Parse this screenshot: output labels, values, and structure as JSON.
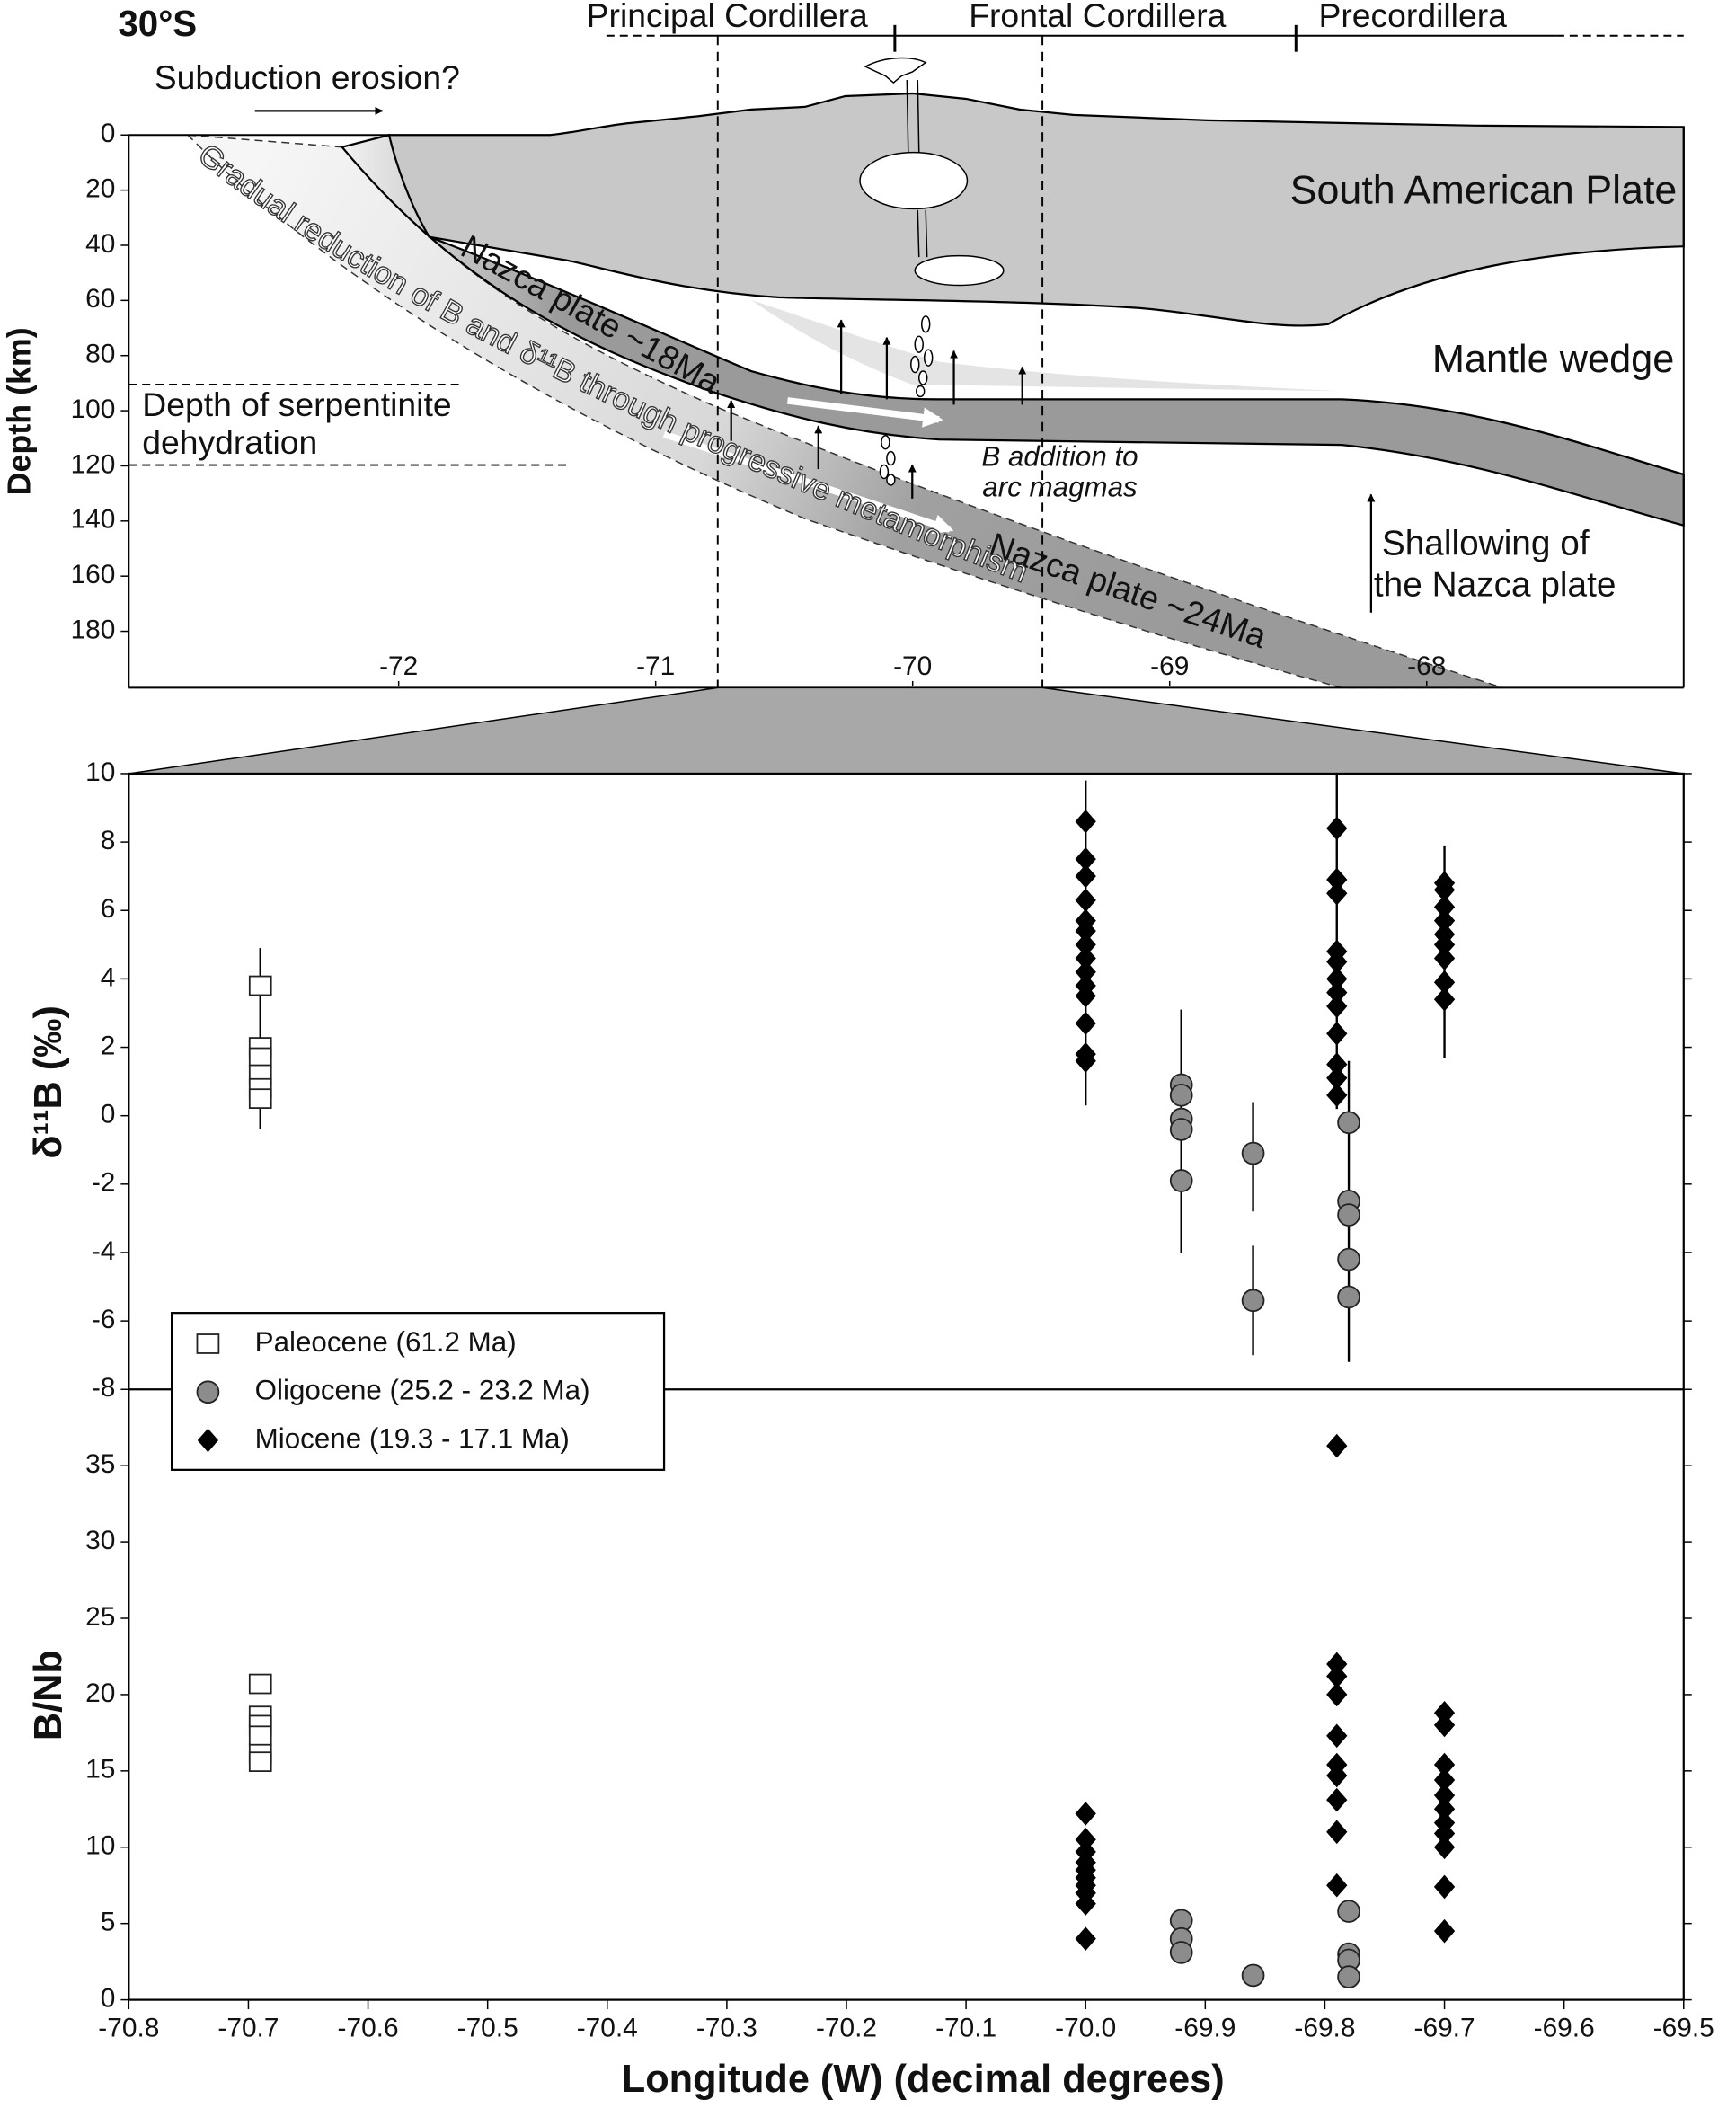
{
  "chart_data": [
    {
      "type": "section",
      "title": "30°S",
      "ylabel": "Depth (km)",
      "ylim": [
        0,
        200
      ],
      "yticks": [
        0,
        20,
        40,
        60,
        80,
        100,
        120,
        140,
        160,
        180
      ],
      "xlim": [
        -73.05,
        -67.0
      ],
      "xticks": [
        -72,
        -71,
        -70,
        -69,
        -68
      ],
      "regions": [
        "Principal Cordillera",
        "Frontal Cordillera",
        "Precordillera"
      ],
      "annotations": {
        "erosion": "Subduction erosion?",
        "plate": "South American Plate",
        "wedge": "Mantle wedge",
        "slab18": "Nazca plate ~18Ma",
        "slab24": "Nazca plate ~24Ma",
        "reduction": "Gradual reduction of B and δ¹¹B through progressive metamorphism",
        "serpentinite": [
          "Depth of serpentinite",
          "dehydration"
        ],
        "addition": [
          "B addition to",
          "arc magmas"
        ],
        "shallowing": [
          "Shallowing of",
          "the Nazca plate"
        ]
      }
    },
    {
      "type": "scatter",
      "ylabel": "δ¹¹B (‰)",
      "xlim": [
        -70.8,
        -69.5
      ],
      "ylim": [
        -8,
        10
      ],
      "yticks": [
        -8,
        -6,
        -4,
        -2,
        0,
        2,
        4,
        6,
        8,
        10
      ],
      "legend": "lower left",
      "series": [
        {
          "name": "Paleocene (61.2 Ma)",
          "marker": "square",
          "color": "#ffffff",
          "x": [
            -70.69,
            -70.69,
            -70.69,
            -70.69,
            -70.69,
            -70.69
          ],
          "values": [
            3.8,
            2.0,
            1.7,
            1.2,
            0.8,
            0.5
          ],
          "error_bars": [
            {
              "x": -70.69,
              "low": -0.4,
              "high": 4.9
            }
          ]
        },
        {
          "name": "Oligocene (25.2 - 23.2 Ma)",
          "marker": "circle",
          "color": "#8c8c8c",
          "x": [
            -69.92,
            -69.92,
            -69.92,
            -69.92,
            -69.92,
            -69.86,
            -69.86,
            -69.78,
            -69.78,
            -69.78,
            -69.78,
            -69.78
          ],
          "values": [
            0.9,
            0.6,
            -0.1,
            -0.4,
            -1.9,
            -1.1,
            -5.4,
            -0.2,
            -2.5,
            -2.9,
            -4.2,
            -5.3
          ],
          "error_bars": [
            {
              "x": -69.92,
              "low": -4.0,
              "high": 3.1
            },
            {
              "x": -69.86,
              "low": -2.8,
              "high": 0.4
            },
            {
              "x": -69.86,
              "low": -7.0,
              "high": -3.8
            },
            {
              "x": -69.78,
              "low": -7.2,
              "high": 1.6
            }
          ]
        },
        {
          "name": "Miocene (19.3 - 17.1 Ma)",
          "marker": "diamond",
          "color": "#000000",
          "x": [
            -70.0,
            -70.0,
            -70.0,
            -70.0,
            -70.0,
            -70.0,
            -70.0,
            -70.0,
            -70.0,
            -70.0,
            -70.0,
            -70.0,
            -70.0,
            -70.0,
            -69.79,
            -69.79,
            -69.79,
            -69.79,
            -69.79,
            -69.79,
            -69.79,
            -69.79,
            -69.79,
            -69.79,
            -69.79,
            -69.79,
            -69.7,
            -69.7,
            -69.7,
            -69.7,
            -69.7,
            -69.7,
            -69.7,
            -69.7,
            -69.7
          ],
          "values": [
            8.6,
            7.5,
            7.0,
            6.3,
            5.7,
            5.4,
            5.0,
            4.6,
            4.2,
            3.8,
            3.5,
            2.7,
            1.8,
            1.6,
            8.4,
            6.9,
            6.5,
            4.8,
            4.5,
            4.0,
            3.6,
            3.2,
            2.4,
            1.5,
            1.1,
            0.6,
            6.8,
            6.6,
            6.1,
            5.7,
            5.3,
            5.0,
            4.6,
            3.9,
            3.4
          ],
          "error_bars": [
            {
              "x": -70.0,
              "low": 0.3,
              "high": 9.8
            },
            {
              "x": -69.79,
              "low": 0.2,
              "high": 10.0
            },
            {
              "x": -69.7,
              "low": 1.7,
              "high": 7.9
            }
          ]
        }
      ]
    },
    {
      "type": "scatter",
      "ylabel": "B/Nb",
      "xlabel": "Longitude (W) (decimal degrees)",
      "xlim": [
        -70.8,
        -69.5
      ],
      "ylim": [
        0,
        40
      ],
      "yticks": [
        0,
        5,
        10,
        15,
        20,
        25,
        30,
        35
      ],
      "xticks": [
        -70.8,
        -70.7,
        -70.6,
        -70.5,
        -70.4,
        -70.3,
        -70.2,
        -70.1,
        {
          "value": -70.0,
          "label": "-70.0"
        },
        -69.9,
        -69.8,
        -69.7,
        -69.6,
        -69.5
      ],
      "series": [
        {
          "marker": "square",
          "color": "#ffffff",
          "x": [
            -70.69,
            -70.69,
            -70.69,
            -70.69,
            -70.69,
            -70.69
          ],
          "values": [
            20.7,
            18.6,
            18.0,
            17.3,
            16.1,
            15.6
          ]
        },
        {
          "marker": "circle",
          "color": "#8c8c8c",
          "x": [
            -69.92,
            -69.92,
            -69.92,
            -69.86,
            -69.78,
            -69.78,
            -69.78,
            -69.78
          ],
          "values": [
            5.2,
            4.0,
            3.1,
            1.6,
            5.8,
            3.0,
            2.6,
            1.5
          ]
        },
        {
          "marker": "diamond",
          "color": "#000000",
          "x": [
            -70.0,
            -70.0,
            -70.0,
            -70.0,
            -70.0,
            -70.0,
            -70.0,
            -70.0,
            -70.0,
            -70.0,
            -69.79,
            -69.79,
            -69.79,
            -69.79,
            -69.79,
            -69.79,
            -69.79,
            -69.79,
            -69.79,
            -69.79,
            -69.7,
            -69.7,
            -69.7,
            -69.7,
            -69.7,
            -69.7,
            -69.7,
            -69.7,
            -69.7,
            -69.7,
            -69.7
          ],
          "values": [
            12.2,
            10.5,
            9.7,
            9.0,
            8.5,
            8.0,
            7.5,
            7.0,
            6.3,
            4.0,
            36.3,
            22.0,
            21.2,
            20.0,
            17.3,
            15.4,
            14.7,
            13.1,
            11.0,
            7.5,
            18.8,
            18.0,
            15.4,
            14.4,
            13.4,
            12.5,
            11.6,
            10.9,
            10.0,
            7.4,
            4.5
          ]
        }
      ]
    }
  ]
}
